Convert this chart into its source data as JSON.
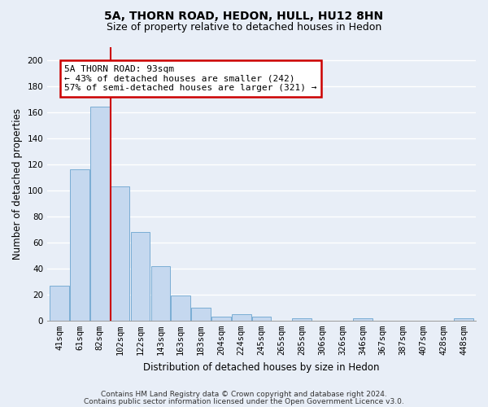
{
  "title1": "5A, THORN ROAD, HEDON, HULL, HU12 8HN",
  "title2": "Size of property relative to detached houses in Hedon",
  "xlabel": "Distribution of detached houses by size in Hedon",
  "ylabel": "Number of detached properties",
  "bar_values": [
    27,
    116,
    164,
    103,
    68,
    42,
    19,
    10,
    3,
    5,
    3,
    0,
    2,
    0,
    0,
    2,
    0,
    0,
    0,
    0,
    2
  ],
  "bar_labels": [
    "41sqm",
    "61sqm",
    "82sqm",
    "102sqm",
    "122sqm",
    "143sqm",
    "163sqm",
    "183sqm",
    "204sqm",
    "224sqm",
    "245sqm",
    "265sqm",
    "285sqm",
    "306sqm",
    "326sqm",
    "346sqm",
    "367sqm",
    "387sqm",
    "407sqm",
    "428sqm",
    "448sqm"
  ],
  "bar_color": "#c5d8ef",
  "bar_edge_color": "#7aadd4",
  "vline_color": "#cc0000",
  "vline_x": 2.55,
  "annotation_text": "5A THORN ROAD: 93sqm\n← 43% of detached houses are smaller (242)\n57% of semi-detached houses are larger (321) →",
  "annotation_box_color": "#ffffff",
  "annotation_border_color": "#cc0000",
  "ylim": [
    0,
    210
  ],
  "yticks": [
    0,
    20,
    40,
    60,
    80,
    100,
    120,
    140,
    160,
    180,
    200
  ],
  "footer1": "Contains HM Land Registry data © Crown copyright and database right 2024.",
  "footer2": "Contains public sector information licensed under the Open Government Licence v3.0.",
  "bg_color": "#e8eef7",
  "plot_bg_color": "#e8eef7",
  "grid_color": "#ffffff",
  "title1_fontsize": 10,
  "title2_fontsize": 9,
  "axis_label_fontsize": 8.5,
  "tick_fontsize": 7.5,
  "annotation_fontsize": 8,
  "footer_fontsize": 6.5
}
